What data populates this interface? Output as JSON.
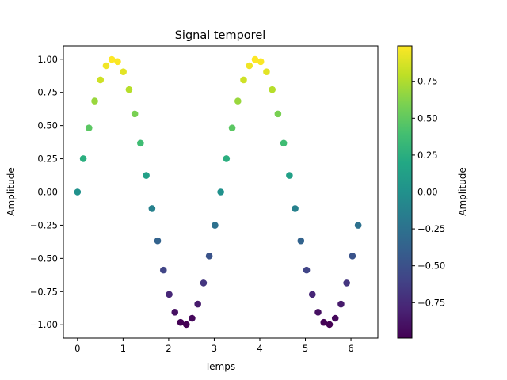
{
  "chart_data": {
    "type": "scatter",
    "title": "Signal temporel",
    "xlabel": "Temps",
    "ylabel": "Amplitude",
    "colorbar_label": "Amplitude",
    "colormap": "viridis",
    "xlim": [
      -0.31,
      6.59
    ],
    "ylim": [
      -1.1,
      1.1
    ],
    "xticks": [
      0,
      1,
      2,
      3,
      4,
      5,
      6
    ],
    "xtick_labels": [
      "0",
      "1",
      "2",
      "3",
      "4",
      "5",
      "6"
    ],
    "yticks": [
      -1.0,
      -0.75,
      -0.5,
      -0.25,
      0.0,
      0.25,
      0.5,
      0.75,
      1.0
    ],
    "ytick_labels": [
      "−1.00",
      "−0.75",
      "−0.50",
      "−0.25",
      "0.00",
      "0.25",
      "0.50",
      "0.75",
      "1.00"
    ],
    "cbar_range": [
      -0.99,
      0.99
    ],
    "cbar_ticks": [
      -0.75,
      -0.5,
      -0.25,
      0.0,
      0.25,
      0.5,
      0.75
    ],
    "cbar_tick_labels": [
      "−0.75",
      "−0.50",
      "−0.25",
      "0.00",
      "0.25",
      "0.50",
      "0.75"
    ],
    "grid": false,
    "points": [
      {
        "x": 0.0,
        "y": 0.0
      },
      {
        "x": 0.126,
        "y": 0.251
      },
      {
        "x": 0.251,
        "y": 0.482
      },
      {
        "x": 0.377,
        "y": 0.685
      },
      {
        "x": 0.503,
        "y": 0.844
      },
      {
        "x": 0.628,
        "y": 0.951
      },
      {
        "x": 0.754,
        "y": 0.998
      },
      {
        "x": 0.88,
        "y": 0.982
      },
      {
        "x": 1.005,
        "y": 0.905
      },
      {
        "x": 1.131,
        "y": 0.771
      },
      {
        "x": 1.257,
        "y": 0.588
      },
      {
        "x": 1.382,
        "y": 0.368
      },
      {
        "x": 1.508,
        "y": 0.125
      },
      {
        "x": 1.634,
        "y": -0.125
      },
      {
        "x": 1.759,
        "y": -0.368
      },
      {
        "x": 1.885,
        "y": -0.588
      },
      {
        "x": 2.011,
        "y": -0.771
      },
      {
        "x": 2.136,
        "y": -0.905
      },
      {
        "x": 2.262,
        "y": -0.982
      },
      {
        "x": 2.388,
        "y": -0.998
      },
      {
        "x": 2.513,
        "y": -0.951
      },
      {
        "x": 2.639,
        "y": -0.844
      },
      {
        "x": 2.765,
        "y": -0.685
      },
      {
        "x": 2.89,
        "y": -0.482
      },
      {
        "x": 3.016,
        "y": -0.251
      },
      {
        "x": 3.142,
        "y": 0.0
      },
      {
        "x": 3.267,
        "y": 0.251
      },
      {
        "x": 3.393,
        "y": 0.482
      },
      {
        "x": 3.519,
        "y": 0.685
      },
      {
        "x": 3.644,
        "y": 0.844
      },
      {
        "x": 3.77,
        "y": 0.951
      },
      {
        "x": 3.896,
        "y": 0.998
      },
      {
        "x": 4.021,
        "y": 0.982
      },
      {
        "x": 4.147,
        "y": 0.905
      },
      {
        "x": 4.273,
        "y": 0.771
      },
      {
        "x": 4.398,
        "y": 0.588
      },
      {
        "x": 4.524,
        "y": 0.368
      },
      {
        "x": 4.65,
        "y": 0.125
      },
      {
        "x": 4.775,
        "y": -0.125
      },
      {
        "x": 4.901,
        "y": -0.368
      },
      {
        "x": 5.027,
        "y": -0.588
      },
      {
        "x": 5.152,
        "y": -0.771
      },
      {
        "x": 5.278,
        "y": -0.905
      },
      {
        "x": 5.404,
        "y": -0.982
      },
      {
        "x": 5.529,
        "y": -0.998
      },
      {
        "x": 5.655,
        "y": -0.951
      },
      {
        "x": 5.781,
        "y": -0.844
      },
      {
        "x": 5.906,
        "y": -0.685
      },
      {
        "x": 6.032,
        "y": -0.482
      },
      {
        "x": 6.158,
        "y": -0.251
      }
    ]
  }
}
